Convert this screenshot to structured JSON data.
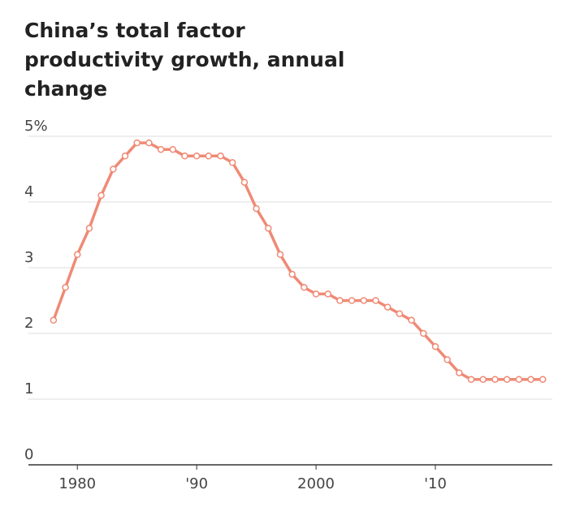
{
  "chart_data": {
    "type": "line",
    "title": "China’s total factor productivity growth, annual change",
    "x": [
      1978,
      1979,
      1980,
      1981,
      1982,
      1983,
      1984,
      1985,
      1986,
      1987,
      1988,
      1989,
      1990,
      1991,
      1992,
      1993,
      1994,
      1995,
      1996,
      1997,
      1998,
      1999,
      2000,
      2001,
      2002,
      2003,
      2004,
      2005,
      2006,
      2007,
      2008,
      2009,
      2010,
      2011,
      2012,
      2013,
      2014,
      2015,
      2016,
      2017,
      2018,
      2019
    ],
    "values": [
      2.2,
      2.7,
      3.2,
      3.6,
      4.1,
      4.5,
      4.7,
      4.9,
      4.9,
      4.8,
      4.8,
      4.7,
      4.7,
      4.7,
      4.7,
      4.6,
      4.3,
      3.9,
      3.6,
      3.2,
      2.9,
      2.7,
      2.6,
      2.6,
      2.5,
      2.5,
      2.5,
      2.5,
      2.4,
      2.3,
      2.2,
      2.0,
      1.8,
      1.6,
      1.4,
      1.3,
      1.3,
      1.3,
      1.3,
      1.3,
      1.3,
      1.3
    ],
    "color": "#ef8a75",
    "xlim": [
      1975.9,
      2019.8
    ],
    "xticks": [
      1980,
      {
        "value": 1990,
        "label": "'90"
      },
      2000,
      {
        "value": 2010,
        "label": "'10"
      }
    ],
    "ylim": [
      0,
      5
    ],
    "yticks": [
      0,
      1,
      2,
      3,
      4,
      {
        "value": 5,
        "label": "5%"
      }
    ],
    "grid": true
  }
}
